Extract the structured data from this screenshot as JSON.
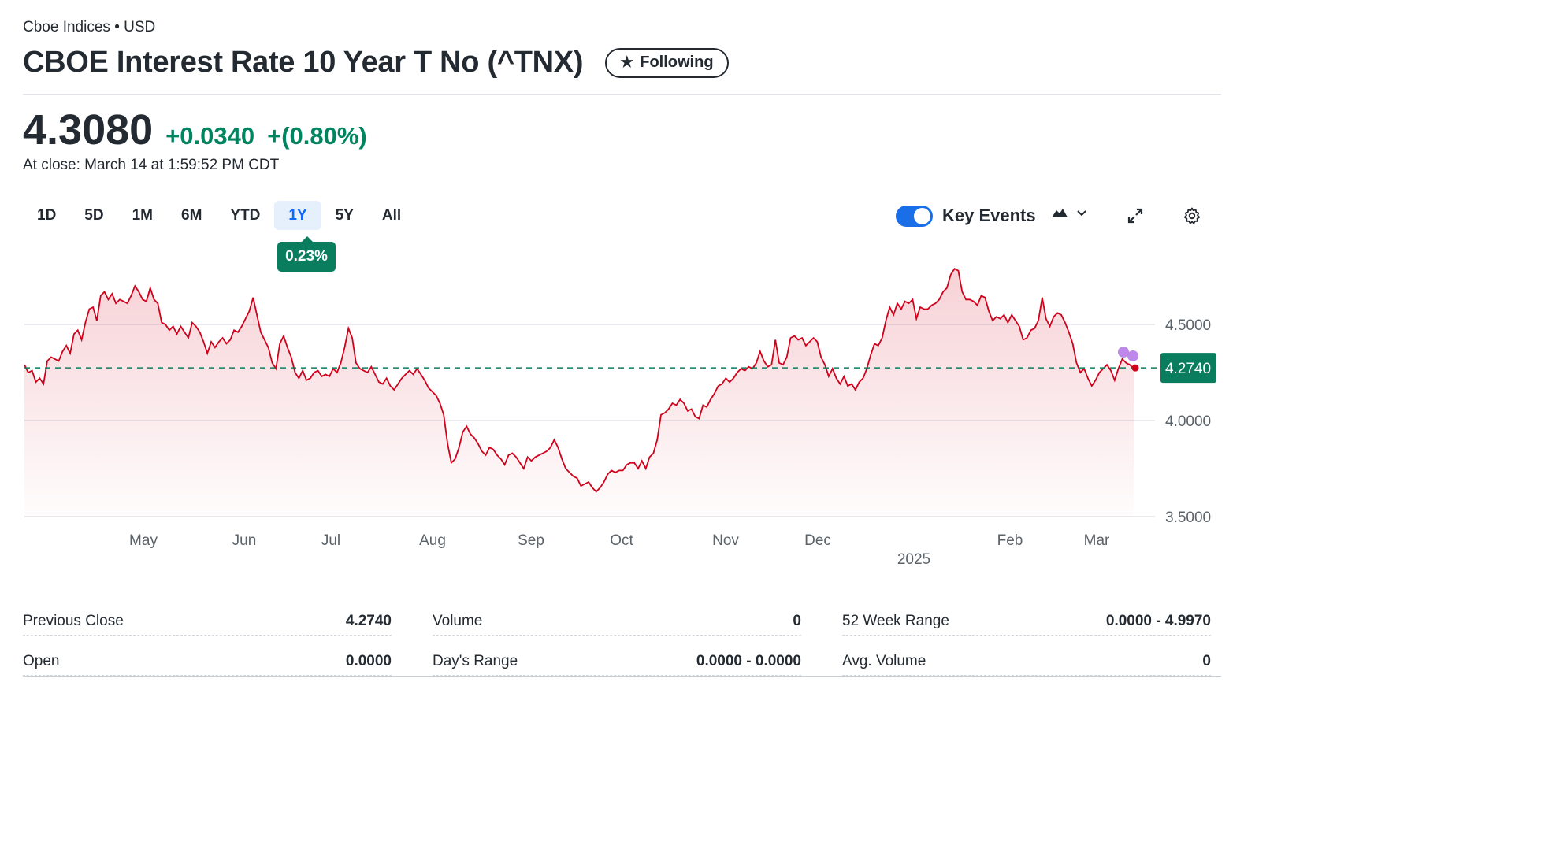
{
  "header": {
    "exchange": "Cboe Indices",
    "separator": "•",
    "currency": "USD",
    "title": "CBOE Interest Rate 10 Year T No (^TNX)",
    "follow_label": "Following",
    "follow_icon": "star-icon"
  },
  "quote": {
    "price": "4.3080",
    "change": "+0.0340",
    "change_pct": "+(0.80%)",
    "close_time": "At close: March 14 at 1:59:52 PM CDT",
    "up_color": "#008560"
  },
  "ranges": {
    "items": [
      "1D",
      "5D",
      "1M",
      "6M",
      "YTD",
      "1Y",
      "5Y",
      "All"
    ],
    "active": "1Y",
    "tooltip": "0.23%"
  },
  "controls": {
    "key_events_label": "Key Events",
    "key_events_on": true,
    "chart_type_icon": "mountain-chart-icon",
    "dropdown_icon": "chevron-down-icon",
    "expand_icon": "expand-icon",
    "settings_icon": "gear-icon"
  },
  "chart_data": {
    "type": "area",
    "x_labels": [
      "May",
      "Jun",
      "Jul",
      "Aug",
      "Sep",
      "Oct",
      "Nov",
      "Dec",
      "Feb",
      "Mar"
    ],
    "year_label": "2025",
    "y_ticks": [
      "4.5000",
      "4.0000",
      "3.5000"
    ],
    "ylim": [
      3.5,
      4.85
    ],
    "previous_close": 4.274,
    "previous_close_label": "4.2740",
    "line_color": "#d0021b",
    "values": [
      4.29,
      4.25,
      4.26,
      4.2,
      4.22,
      4.19,
      4.31,
      4.33,
      4.32,
      4.31,
      4.36,
      4.39,
      4.35,
      4.45,
      4.47,
      4.42,
      4.51,
      4.58,
      4.59,
      4.52,
      4.65,
      4.67,
      4.63,
      4.66,
      4.61,
      4.63,
      4.62,
      4.61,
      4.65,
      4.7,
      4.67,
      4.63,
      4.62,
      4.69,
      4.63,
      4.61,
      4.51,
      4.5,
      4.47,
      4.49,
      4.45,
      4.49,
      4.46,
      4.43,
      4.51,
      4.49,
      4.46,
      4.41,
      4.35,
      4.41,
      4.38,
      4.41,
      4.43,
      4.4,
      4.42,
      4.47,
      4.46,
      4.49,
      4.53,
      4.57,
      4.64,
      4.55,
      4.46,
      4.42,
      4.38,
      4.3,
      4.27,
      4.4,
      4.44,
      4.38,
      4.33,
      4.25,
      4.22,
      4.26,
      4.21,
      4.22,
      4.25,
      4.26,
      4.23,
      4.24,
      4.23,
      4.27,
      4.25,
      4.3,
      4.38,
      4.48,
      4.43,
      4.3,
      4.27,
      4.26,
      4.25,
      4.28,
      4.24,
      4.2,
      4.19,
      4.22,
      4.18,
      4.16,
      4.19,
      4.22,
      4.24,
      4.26,
      4.24,
      4.27,
      4.24,
      4.21,
      4.17,
      4.15,
      4.13,
      4.09,
      4.03,
      3.88,
      3.78,
      3.8,
      3.86,
      3.94,
      3.97,
      3.93,
      3.91,
      3.88,
      3.84,
      3.82,
      3.86,
      3.85,
      3.82,
      3.8,
      3.77,
      3.82,
      3.83,
      3.81,
      3.78,
      3.75,
      3.81,
      3.79,
      3.81,
      3.82,
      3.83,
      3.84,
      3.86,
      3.9,
      3.86,
      3.8,
      3.75,
      3.73,
      3.71,
      3.7,
      3.66,
      3.67,
      3.68,
      3.65,
      3.63,
      3.65,
      3.68,
      3.72,
      3.74,
      3.73,
      3.74,
      3.74,
      3.77,
      3.78,
      3.78,
      3.75,
      3.79,
      3.75,
      3.81,
      3.83,
      3.9,
      4.03,
      4.04,
      4.06,
      4.09,
      4.08,
      4.11,
      4.09,
      4.05,
      4.06,
      4.02,
      4.01,
      4.08,
      4.07,
      4.11,
      4.14,
      4.18,
      4.19,
      4.22,
      4.2,
      4.22,
      4.25,
      4.27,
      4.26,
      4.28,
      4.27,
      4.3,
      4.36,
      4.31,
      4.28,
      4.29,
      4.42,
      4.3,
      4.29,
      4.33,
      4.43,
      4.44,
      4.42,
      4.43,
      4.39,
      4.41,
      4.43,
      4.41,
      4.33,
      4.29,
      4.23,
      4.27,
      4.22,
      4.19,
      4.23,
      4.18,
      4.19,
      4.16,
      4.2,
      4.22,
      4.27,
      4.34,
      4.4,
      4.39,
      4.43,
      4.52,
      4.59,
      4.55,
      4.61,
      4.58,
      4.62,
      4.61,
      4.63,
      4.53,
      4.59,
      4.58,
      4.58,
      4.6,
      4.61,
      4.63,
      4.67,
      4.69,
      4.76,
      4.79,
      4.78,
      4.67,
      4.63,
      4.63,
      4.62,
      4.6,
      4.65,
      4.64,
      4.57,
      4.52,
      4.54,
      4.53,
      4.55,
      4.51,
      4.55,
      4.52,
      4.49,
      4.42,
      4.43,
      4.47,
      4.48,
      4.52,
      4.64,
      4.53,
      4.49,
      4.54,
      4.56,
      4.55,
      4.51,
      4.46,
      4.4,
      4.3,
      4.25,
      4.27,
      4.22,
      4.18,
      4.21,
      4.25,
      4.27,
      4.29,
      4.26,
      4.21,
      4.27,
      4.32,
      4.3,
      4.29,
      4.27
    ],
    "event_markers": 2
  },
  "stats": {
    "col1": [
      {
        "label": "Previous Close",
        "value": "4.2740"
      },
      {
        "label": "Open",
        "value": "0.0000"
      }
    ],
    "col2": [
      {
        "label": "Volume",
        "value": "0"
      },
      {
        "label": "Day's Range",
        "value": "0.0000 - 0.0000"
      }
    ],
    "col3": [
      {
        "label": "52 Week Range",
        "value": "0.0000 - 4.9970"
      },
      {
        "label": "Avg. Volume",
        "value": "0"
      }
    ]
  }
}
